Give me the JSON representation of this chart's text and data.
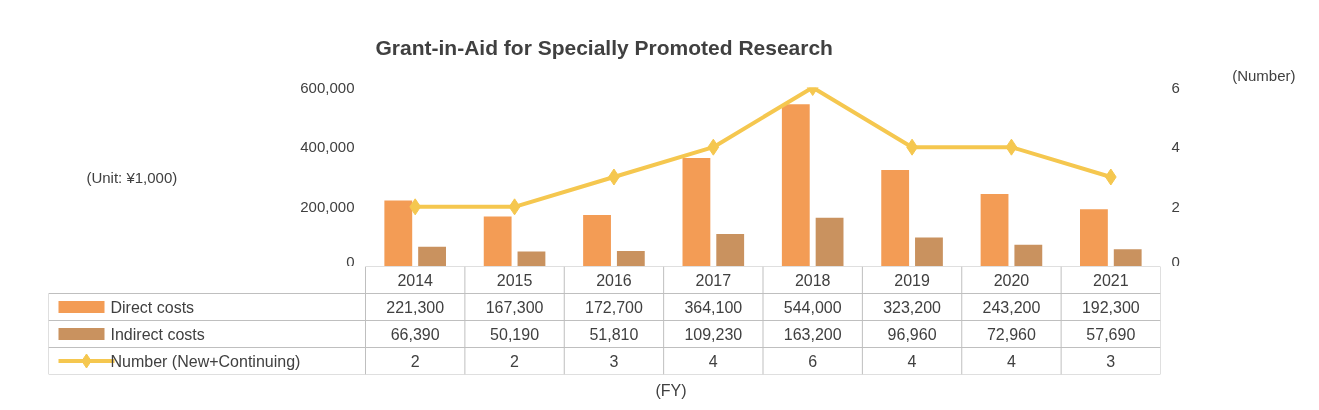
{
  "chart_data": {
    "type": "bar",
    "title": "Grant-in-Aid for Specially Promoted Research",
    "y2label": "(Number)",
    "annotations": [
      "(Unit: ¥1,000)",
      "(FY)"
    ],
    "categories": [
      "2014",
      "2015",
      "2016",
      "2017",
      "2018",
      "2019",
      "2020",
      "2021"
    ],
    "series": [
      {
        "name": "Direct costs",
        "color": "#f39c55",
        "values": [
          221300,
          167300,
          172700,
          364100,
          544000,
          323200,
          243200,
          192300
        ],
        "value_labels": [
          "221,300",
          "167,300",
          "172,700",
          "364,100",
          "544,000",
          "323,200",
          "243,200",
          "192,300"
        ]
      },
      {
        "name": "Indirect costs",
        "color": "#c9925f",
        "values": [
          66390,
          50190,
          51810,
          109230,
          163200,
          96960,
          72960,
          57690
        ],
        "value_labels": [
          "66,390",
          "50,190",
          "51,810",
          "109,230",
          "163,200",
          "96,960",
          "72,960",
          "57,690"
        ]
      },
      {
        "name": "Number (New+Continuing)",
        "type": "line",
        "axis": "y2",
        "marker": "diamond",
        "color": "#f5c74f",
        "values": [
          2,
          2,
          3,
          4,
          6,
          4,
          4,
          3
        ],
        "value_labels": [
          "2",
          "2",
          "3",
          "4",
          "6",
          "4",
          "4",
          "3"
        ]
      }
    ],
    "ylim": [
      0,
      600000
    ],
    "yticks": [
      {
        "value": 0,
        "label": "0"
      },
      {
        "value": 200000,
        "label": "200,000"
      },
      {
        "value": 400000,
        "label": "400,000"
      },
      {
        "value": 600000,
        "label": "600,000"
      }
    ],
    "y2lim": [
      0,
      6
    ],
    "y2ticks": [
      0,
      2,
      4,
      6
    ],
    "grid": false,
    "legend": "bottom"
  }
}
